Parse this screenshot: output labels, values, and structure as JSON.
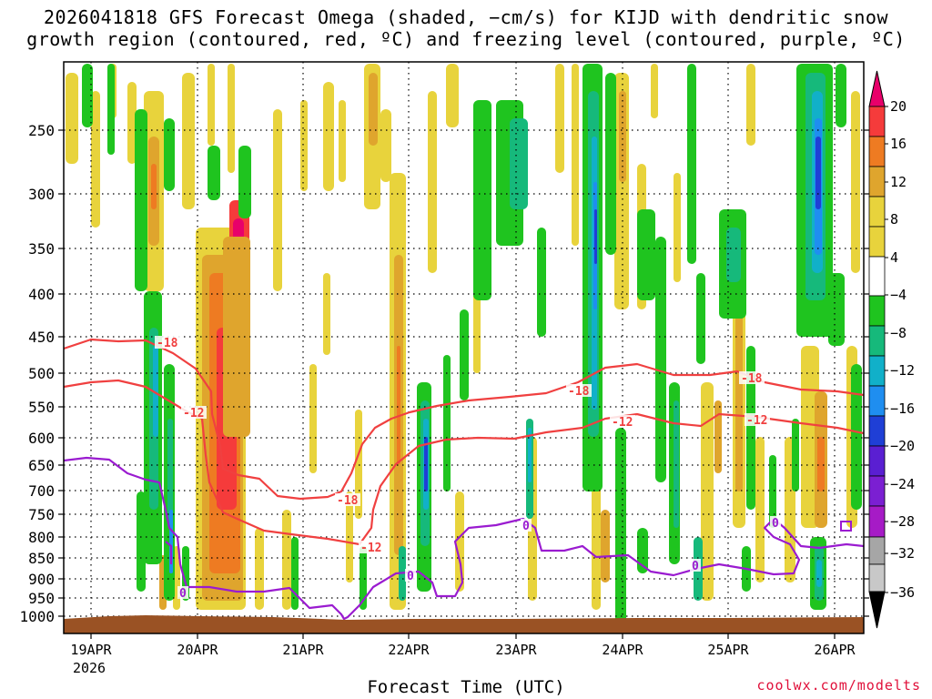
{
  "title_line1": "2026041818 GFS Forecast Omega (shaded, −cm/s) for KIJD with dendritic snow",
  "title_line2": "growth region (contoured, red, ºC) and freezing level (contoured, purple, ºC)",
  "xlabel": "Forecast Time (UTC)",
  "credit": "coolwx.com/modelts",
  "chart_data": {
    "type": "heatmap",
    "y_axis": {
      "quantity": "pressure (hPa)",
      "ticks": [
        250,
        300,
        350,
        400,
        450,
        500,
        550,
        600,
        650,
        700,
        750,
        800,
        850,
        900,
        950,
        1000
      ],
      "range": [
        1000,
        200
      ],
      "scale": "log-pressure",
      "grid": true
    },
    "x_axis": {
      "ticks": [
        "19APR",
        "20APR",
        "21APR",
        "22APR",
        "23APR",
        "24APR",
        "25APR",
        "26APR"
      ],
      "year_label": "2026",
      "grid": true
    },
    "colorbar": {
      "labels": [
        "20",
        "16",
        "12",
        "8",
        "4",
        "−4",
        "−8",
        "−12",
        "−16",
        "−20",
        "−24",
        "−28",
        "−32",
        "−36"
      ],
      "colors": [
        "#e8006a",
        "#f53b3b",
        "#ee7b22",
        "#dfa52d",
        "#e8d33c",
        "#ffffff",
        "#1fc41f",
        "#16b97b",
        "#11b0c9",
        "#1f8ef0",
        "#1f3fd6",
        "#7b1fd2",
        "#a61bc6",
        "#a6a6a6",
        "#000000"
      ]
    },
    "series": [
      {
        "name": "dendritic snow growth region (red, ºC)",
        "contour_labels": [
          "-18",
          "-12"
        ],
        "color": "#f04040"
      },
      {
        "name": "freezing level (purple, ºC)",
        "contour_labels": [
          "0"
        ],
        "color": "#9a1bd0"
      }
    ],
    "contour_labels_shown": [
      {
        "text": "-18",
        "color": "#f04040"
      },
      {
        "text": "-12",
        "color": "#f04040"
      },
      {
        "text": "-18",
        "color": "#f04040"
      },
      {
        "text": "-12",
        "color": "#f04040"
      },
      {
        "text": "-18",
        "color": "#f04040"
      },
      {
        "text": "-12",
        "color": "#f04040"
      },
      {
        "text": "-18",
        "color": "#f04040"
      },
      {
        "text": "-12",
        "color": "#f04040"
      },
      {
        "text": "0",
        "color": "#9a1bd0"
      },
      {
        "text": "0",
        "color": "#9a1bd0"
      },
      {
        "text": "0",
        "color": "#9a1bd0"
      },
      {
        "text": "0",
        "color": "#9a1bd0"
      },
      {
        "text": "0",
        "color": "#9a1bd0"
      }
    ],
    "ground_color": "#9a5224"
  }
}
